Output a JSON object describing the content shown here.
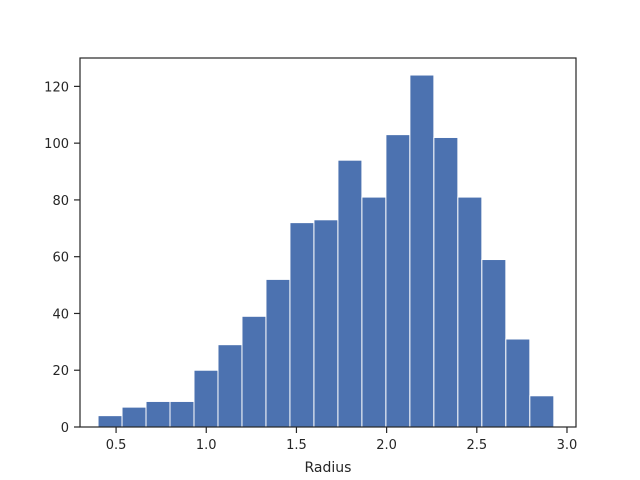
{
  "chart_data": {
    "type": "bar",
    "subtype": "histogram",
    "title": "",
    "xlabel": "Radius",
    "ylabel": "",
    "xlim": [
      0.3,
      3.05
    ],
    "ylim": [
      0,
      130
    ],
    "xticks": [
      0.5,
      1.0,
      1.5,
      2.0,
      2.5,
      3.0
    ],
    "xtick_labels": [
      "0.5",
      "1.0",
      "1.5",
      "2.0",
      "2.5",
      "3.0"
    ],
    "yticks": [
      0,
      20,
      40,
      60,
      80,
      100,
      120
    ],
    "ytick_labels": [
      "0",
      "20",
      "40",
      "60",
      "80",
      "100",
      "120"
    ],
    "bin_edges": [
      0.4,
      0.533,
      0.666,
      0.799,
      0.932,
      1.065,
      1.198,
      1.331,
      1.464,
      1.597,
      1.73,
      1.863,
      1.996,
      2.129,
      2.262,
      2.395,
      2.528,
      2.661,
      2.794,
      2.927
    ],
    "values": [
      4,
      7,
      9,
      9,
      20,
      29,
      39,
      52,
      72,
      73,
      94,
      81,
      103,
      124,
      102,
      81,
      59,
      31,
      11
    ],
    "bar_color": "#4c72b0",
    "bar_edge_color": "#ffffff",
    "grid": false,
    "legend": "none"
  }
}
